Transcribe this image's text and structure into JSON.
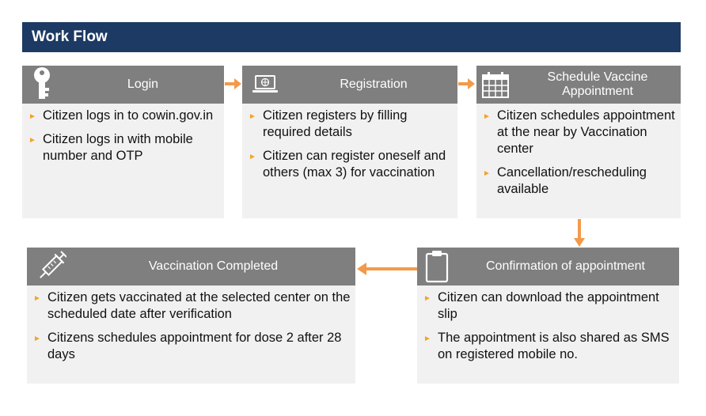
{
  "title": "Work Flow",
  "accent_color": "#f39a4a",
  "header_color": "#7f7f7f",
  "title_bar_color": "#1c3a63",
  "steps": [
    {
      "label": "Login",
      "icon": "key-icon",
      "bullets": [
        "Citizen logs in to cowin.gov.in",
        "Citizen logs in with mobile number and OTP"
      ]
    },
    {
      "label": "Registration",
      "icon": "laptop-icon",
      "bullets": [
        "Citizen registers by filling required details",
        "Citizen can register oneself and others (max 3) for vaccination"
      ]
    },
    {
      "label": "Schedule Vaccine Appointment",
      "icon": "calendar-icon",
      "bullets": [
        "Citizen schedules appointment at the near by Vaccination center",
        "Cancellation/rescheduling available"
      ]
    },
    {
      "label": "Confirmation of appointment",
      "icon": "clipboard-icon",
      "bullets": [
        "Citizen can download the appointment slip",
        "The appointment is also shared as SMS on registered mobile no."
      ]
    },
    {
      "label": "Vaccination Completed",
      "icon": "syringe-icon",
      "bullets": [
        "Citizen gets vaccinated at the selected center on the scheduled date after verification",
        "Citizens schedules appointment for dose 2 after 28 days"
      ]
    }
  ]
}
